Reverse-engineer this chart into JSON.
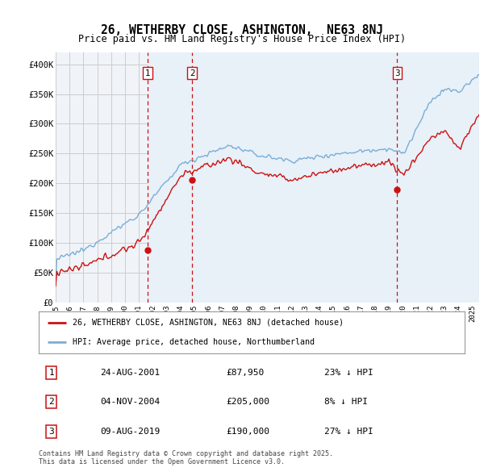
{
  "title": "26, WETHERBY CLOSE, ASHINGTON,  NE63 8NJ",
  "subtitle": "Price paid vs. HM Land Registry's House Price Index (HPI)",
  "ylabel_ticks": [
    "£0",
    "£50K",
    "£100K",
    "£150K",
    "£200K",
    "£250K",
    "£300K",
    "£350K",
    "£400K"
  ],
  "ytick_values": [
    0,
    50000,
    100000,
    150000,
    200000,
    250000,
    300000,
    350000,
    400000
  ],
  "ylim": [
    0,
    420000
  ],
  "xlim_start": 1995.0,
  "xlim_end": 2025.5,
  "grid_color": "#cccccc",
  "hpi_color": "#7aaed6",
  "price_color": "#cc1111",
  "vline_color": "#cc1111",
  "shade_color": "#ddeeff",
  "sale_events": [
    {
      "num": 1,
      "year_x": 2001.62,
      "price": 87950,
      "label": "1"
    },
    {
      "num": 2,
      "year_x": 2004.84,
      "price": 205000,
      "label": "2"
    },
    {
      "num": 3,
      "year_x": 2019.6,
      "price": 190000,
      "label": "3"
    }
  ],
  "legend_line1": "26, WETHERBY CLOSE, ASHINGTON, NE63 8NJ (detached house)",
  "legend_line2": "HPI: Average price, detached house, Northumberland",
  "footnote": "Contains HM Land Registry data © Crown copyright and database right 2025.\nThis data is licensed under the Open Government Licence v3.0.",
  "table_rows": [
    [
      "1",
      "24-AUG-2001",
      "£87,950",
      "23% ↓ HPI"
    ],
    [
      "2",
      "04-NOV-2004",
      "£205,000",
      "8% ↓ HPI"
    ],
    [
      "3",
      "09-AUG-2019",
      "£190,000",
      "27% ↓ HPI"
    ]
  ],
  "background_color": "#ffffff",
  "plot_bg_color": "#f0f4f8"
}
